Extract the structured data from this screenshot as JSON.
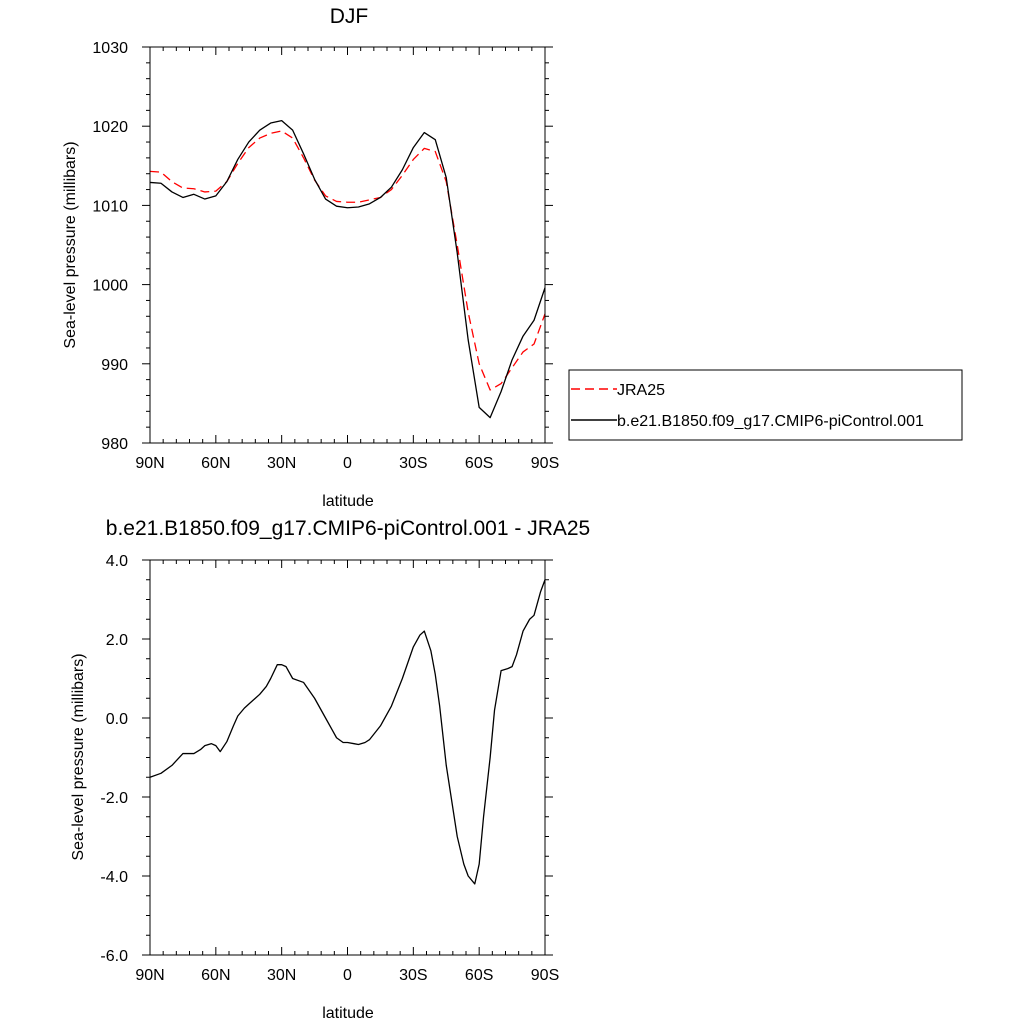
{
  "chart_data": [
    {
      "type": "line",
      "title": "DJF",
      "xlabel": "latitude",
      "ylabel": "Sea-level pressure (millibars)",
      "xlim": [
        90,
        -90
      ],
      "ylim": [
        980,
        1030
      ],
      "xticks": [
        90,
        60,
        30,
        0,
        -30,
        -60,
        -90
      ],
      "xtick_labels": [
        "90N",
        "60N",
        "30N",
        "0",
        "30S",
        "60S",
        "90S"
      ],
      "yticks": [
        980,
        990,
        1000,
        1010,
        1020,
        1030
      ],
      "ytick_labels": [
        "980",
        "990",
        "1000",
        "1010",
        "1020",
        "1030"
      ],
      "legend": "right",
      "series": [
        {
          "name": "JRA25",
          "style": "dashed",
          "color": "#ff0000",
          "x": [
            90,
            85,
            80,
            75,
            70,
            65,
            60,
            55,
            50,
            45,
            40,
            35,
            30,
            25,
            20,
            15,
            10,
            5,
            0,
            -5,
            -10,
            -15,
            -20,
            -25,
            -30,
            -35,
            -40,
            -45,
            -50,
            -55,
            -60,
            -65,
            -70,
            -75,
            -80,
            -85,
            -90
          ],
          "y": [
            1014.3,
            1014.2,
            1013.0,
            1012.2,
            1012.1,
            1011.7,
            1011.8,
            1013.0,
            1015.3,
            1017.3,
            1018.5,
            1019.1,
            1019.4,
            1018.5,
            1016.0,
            1013.2,
            1011.2,
            1010.5,
            1010.4,
            1010.4,
            1010.7,
            1011.0,
            1012.0,
            1013.8,
            1015.8,
            1017.2,
            1016.8,
            1013.0,
            1005.0,
            996.5,
            990.0,
            986.7,
            987.5,
            989.5,
            991.5,
            992.5,
            996.3
          ]
        },
        {
          "name": "b.e21.B1850.f09_g17.CMIP6-piControl.001",
          "style": "solid",
          "color": "#000000",
          "x": [
            90,
            85,
            80,
            75,
            70,
            65,
            60,
            55,
            50,
            45,
            40,
            35,
            30,
            25,
            20,
            15,
            10,
            5,
            0,
            -5,
            -10,
            -15,
            -20,
            -25,
            -30,
            -35,
            -40,
            -45,
            -50,
            -55,
            -60,
            -65,
            -70,
            -75,
            -80,
            -85,
            -90
          ],
          "y": [
            1012.9,
            1012.8,
            1011.7,
            1011.0,
            1011.4,
            1010.8,
            1011.2,
            1013.0,
            1015.8,
            1018.0,
            1019.5,
            1020.4,
            1020.7,
            1019.5,
            1016.5,
            1013.3,
            1010.8,
            1009.9,
            1009.7,
            1009.8,
            1010.2,
            1011.0,
            1012.3,
            1014.5,
            1017.3,
            1019.2,
            1018.3,
            1013.5,
            1004.0,
            993.0,
            984.5,
            983.2,
            986.5,
            990.5,
            993.5,
            995.5,
            999.6
          ]
        }
      ]
    },
    {
      "type": "line",
      "title": "b.e21.B1850.f09_g17.CMIP6-piControl.001 - JRA25",
      "xlabel": "latitude",
      "ylabel": "Sea-level pressure (millibars)",
      "xlim": [
        90,
        -90
      ],
      "ylim": [
        -6.0,
        4.0
      ],
      "xticks": [
        90,
        60,
        30,
        0,
        -30,
        -60,
        -90
      ],
      "xtick_labels": [
        "90N",
        "60N",
        "30N",
        "0",
        "30S",
        "60S",
        "90S"
      ],
      "yticks": [
        -6.0,
        -4.0,
        -2.0,
        0.0,
        2.0,
        4.0
      ],
      "ytick_labels": [
        "-6.0",
        "-4.0",
        "-2.0",
        "0.0",
        "2.0",
        "4.0"
      ],
      "series": [
        {
          "style": "solid",
          "color": "#000000",
          "x": [
            90,
            85,
            80,
            75,
            72,
            70,
            67,
            65,
            62,
            60,
            58,
            55,
            52,
            50,
            47,
            45,
            42,
            40,
            37,
            35,
            32,
            30,
            28,
            25,
            20,
            15,
            10,
            7,
            5,
            2,
            0,
            -3,
            -5,
            -8,
            -10,
            -15,
            -20,
            -25,
            -30,
            -33,
            -35,
            -38,
            -40,
            -42,
            -45,
            -50,
            -53,
            -55,
            -58,
            -60,
            -62,
            -65,
            -67,
            -70,
            -73,
            -75,
            -77,
            -80,
            -83,
            -85,
            -88,
            -90
          ],
          "y": [
            -1.5,
            -1.4,
            -1.2,
            -0.9,
            -0.9,
            -0.9,
            -0.8,
            -0.7,
            -0.65,
            -0.7,
            -0.85,
            -0.6,
            -0.2,
            0.05,
            0.25,
            0.35,
            0.5,
            0.6,
            0.8,
            1.0,
            1.35,
            1.35,
            1.3,
            1.0,
            0.9,
            0.5,
            0.0,
            -0.3,
            -0.5,
            -0.62,
            -0.62,
            -0.65,
            -0.67,
            -0.62,
            -0.55,
            -0.2,
            0.3,
            1.0,
            1.8,
            2.1,
            2.2,
            1.7,
            1.1,
            0.3,
            -1.2,
            -3.0,
            -3.7,
            -4.0,
            -4.2,
            -3.7,
            -2.5,
            -1.0,
            0.2,
            1.2,
            1.25,
            1.3,
            1.6,
            2.2,
            2.5,
            2.6,
            3.2,
            3.5
          ]
        }
      ]
    }
  ]
}
